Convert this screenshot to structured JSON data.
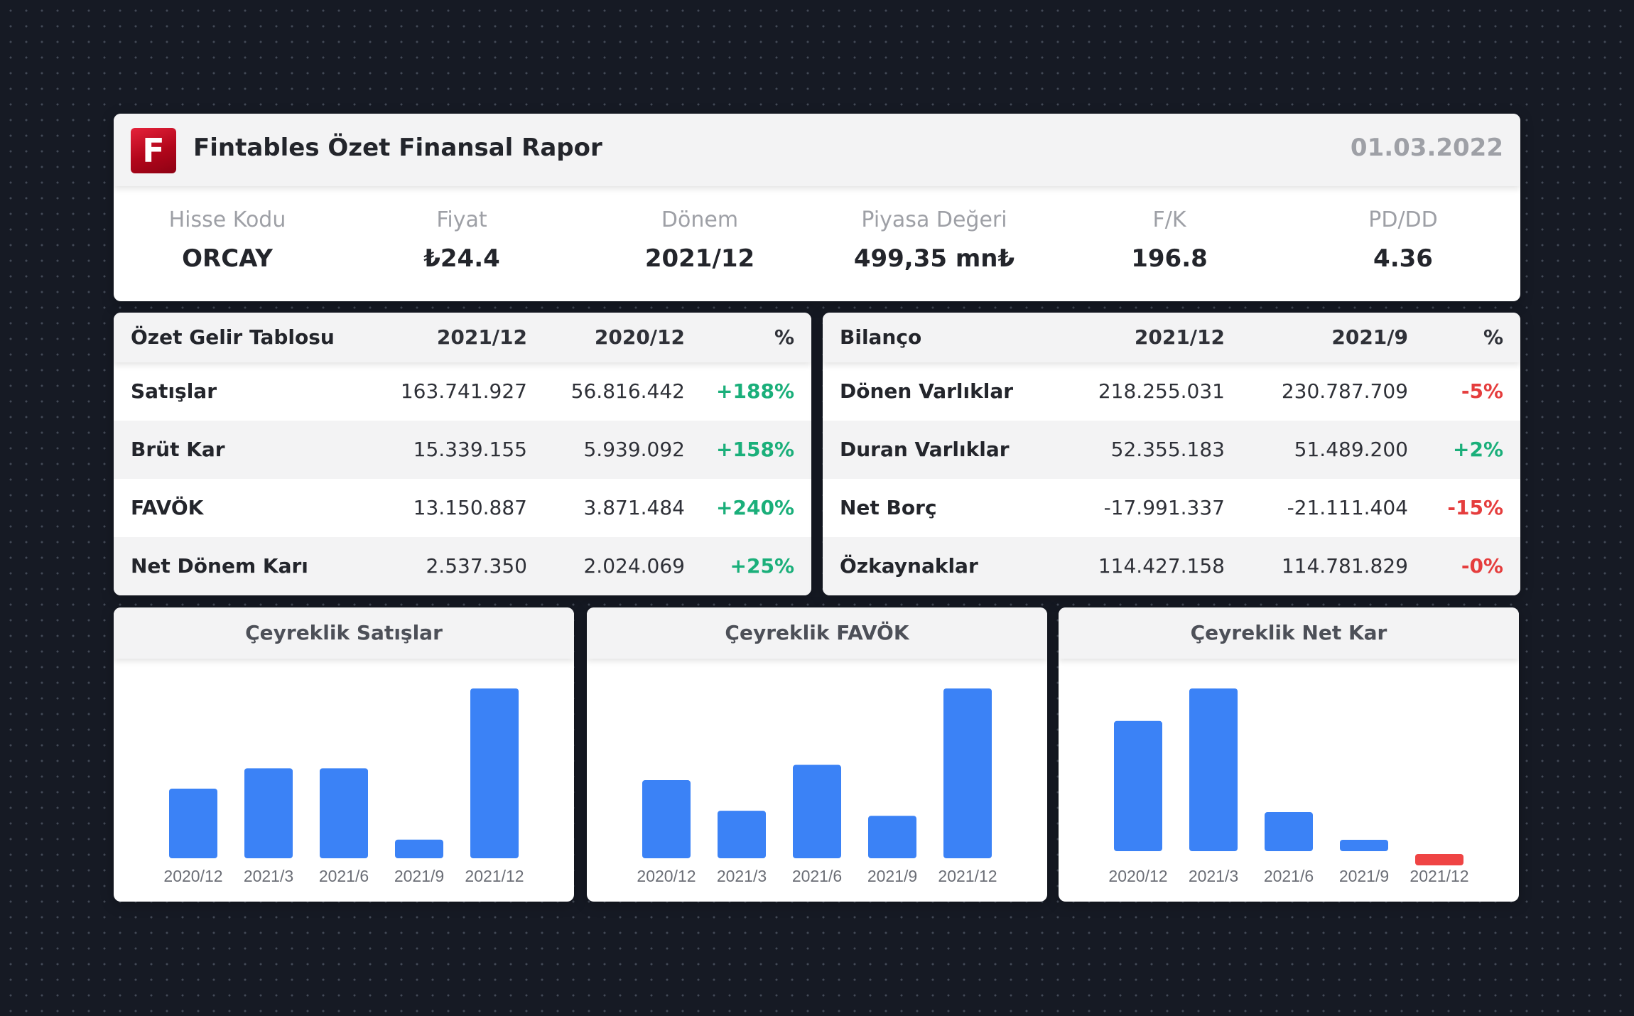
{
  "header": {
    "logo_letter": "F",
    "title": "Fintables Özet Finansal Rapor",
    "date": "01.03.2022"
  },
  "metrics": [
    {
      "label": "Hisse Kodu",
      "value": "ORCAY"
    },
    {
      "label": "Fiyat",
      "value": "₺24.4"
    },
    {
      "label": "Dönem",
      "value": "2021/12"
    },
    {
      "label": "Piyasa Değeri",
      "value": "499,35 mn₺"
    },
    {
      "label": "F/K",
      "value": "196.8"
    },
    {
      "label": "PD/DD",
      "value": "4.36"
    }
  ],
  "income_table": {
    "headers": [
      "Özet Gelir Tablosu",
      "2021/12",
      "2020/12",
      "%"
    ],
    "rows": [
      {
        "name": "Satışlar",
        "cur": "163.741.927",
        "prev": "56.816.442",
        "pct": "+188%"
      },
      {
        "name": "Brüt Kar",
        "cur": "15.339.155",
        "prev": "5.939.092",
        "pct": "+158%"
      },
      {
        "name": "FAVÖK",
        "cur": "13.150.887",
        "prev": "3.871.484",
        "pct": "+240%"
      },
      {
        "name": "Net Dönem Karı",
        "cur": "2.537.350",
        "prev": "2.024.069",
        "pct": "+25%"
      }
    ]
  },
  "balance_table": {
    "headers": [
      "Bilanço",
      "2021/12",
      "2021/9",
      "%"
    ],
    "rows": [
      {
        "name": "Dönen Varlıklar",
        "cur": "218.255.031",
        "prev": "230.787.709",
        "pct": "-5%"
      },
      {
        "name": "Duran Varlıklar",
        "cur": "52.355.183",
        "prev": "51.489.200",
        "pct": "+2%"
      },
      {
        "name": "Net Borç",
        "cur": "-17.991.337",
        "prev": "-21.111.404",
        "pct": "-15%"
      },
      {
        "name": "Özkaynaklar",
        "cur": "114.427.158",
        "prev": "114.781.829",
        "pct": "-0%"
      }
    ]
  },
  "colors": {
    "bar_positive": "#3b82f6",
    "bar_negative": "#ef4444",
    "pct_positive": "#1aaf7a",
    "pct_negative": "#e53d3d"
  },
  "chart_data": [
    {
      "type": "bar",
      "title": "Çeyreklik Satışlar",
      "categories": [
        "2020/12",
        "2021/3",
        "2021/6",
        "2021/9",
        "2021/12"
      ],
      "values": [
        0.41,
        0.53,
        0.53,
        0.11,
        1.0
      ]
    },
    {
      "type": "bar",
      "title": "Çeyreklik FAVÖK",
      "categories": [
        "2020/12",
        "2021/3",
        "2021/6",
        "2021/9",
        "2021/12"
      ],
      "values": [
        0.46,
        0.28,
        0.55,
        0.25,
        1.0
      ]
    },
    {
      "type": "bar",
      "title": "Çeyreklik Net Kar",
      "categories": [
        "2020/12",
        "2021/3",
        "2021/6",
        "2021/9",
        "2021/12"
      ],
      "values": [
        0.8,
        1.0,
        0.24,
        0.07,
        -0.07
      ]
    }
  ]
}
